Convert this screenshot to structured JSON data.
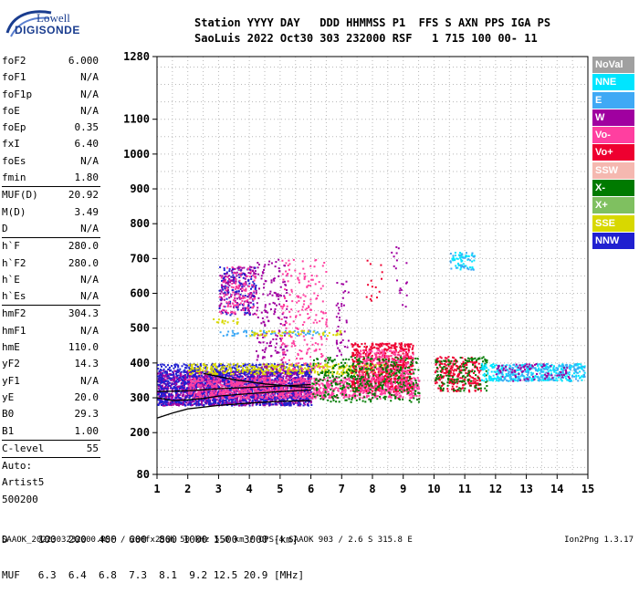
{
  "logo": {
    "line1": "Lowell",
    "line2": "DIGISONDE"
  },
  "header": {
    "line1": "Station YYYY DAY   DDD HHMMSS P1  FFS S AXN PPS IGA PS",
    "line2": "SaoLuis 2022 Oct30 303 232000 RSF   1 715 100 00- 11"
  },
  "params": [
    {
      "label": "foF2",
      "value": "6.000"
    },
    {
      "label": "foF1",
      "value": "N/A"
    },
    {
      "label": "foF1p",
      "value": "N/A"
    },
    {
      "label": "foE",
      "value": "N/A"
    },
    {
      "label": "foEp",
      "value": "0.35"
    },
    {
      "label": "fxI",
      "value": "6.40"
    },
    {
      "label": "foEs",
      "value": "N/A"
    },
    {
      "label": "fmin",
      "value": "1.80"
    },
    {
      "sep": true
    },
    {
      "label": "MUF(D)",
      "value": "20.92"
    },
    {
      "label": "M(D)",
      "value": "3.49"
    },
    {
      "label": "D",
      "value": "N/A"
    },
    {
      "sep": true
    },
    {
      "label": "h`F",
      "value": "280.0"
    },
    {
      "label": "h`F2",
      "value": "280.0"
    },
    {
      "label": "h`E",
      "value": "N/A"
    },
    {
      "label": "h`Es",
      "value": "N/A"
    },
    {
      "sep": true
    },
    {
      "label": "hmF2",
      "value": "304.3"
    },
    {
      "label": "hmF1",
      "value": "N/A"
    },
    {
      "label": "hmE",
      "value": "110.0"
    },
    {
      "label": "yF2",
      "value": "14.3"
    },
    {
      "label": "yF1",
      "value": "N/A"
    },
    {
      "label": "yE",
      "value": "20.0"
    },
    {
      "label": "B0",
      "value": "29.3"
    },
    {
      "label": "B1",
      "value": "1.00"
    },
    {
      "sep": true
    },
    {
      "label": "C-level",
      "value": "55"
    },
    {
      "sep": true
    },
    {
      "plain": "Auto:"
    },
    {
      "plain": "Artist5"
    },
    {
      "plain": "500200"
    }
  ],
  "legend": [
    {
      "name": "NoVal",
      "color": "#a0a0a0"
    },
    {
      "name": "NNE",
      "color": "#00e5ff"
    },
    {
      "name": "E",
      "color": "#3fa9f5"
    },
    {
      "name": "W",
      "color": "#a000a0"
    },
    {
      "name": "Vo-",
      "color": "#ff3fa0"
    },
    {
      "name": "Vo+",
      "color": "#ee0030"
    },
    {
      "name": "SSW",
      "color": "#f5b8b0"
    },
    {
      "name": "X-",
      "color": "#007a00"
    },
    {
      "name": "X+",
      "color": "#7fc060"
    },
    {
      "name": "SSE",
      "color": "#d8d800"
    },
    {
      "name": "NNW",
      "color": "#2020d0"
    }
  ],
  "dmuf": {
    "d_row": "D     100  200  400  600  800 1000 1500 3000 [km]",
    "muf_row": "MUF   6.3  6.4  6.8  7.3  8.1  9.2 12.5 20.9 [MHz]"
  },
  "footer": {
    "left": "SAAOK_2022303232000.RSF / 280fx256h 50 kHz 5.0 km / DPS-4 SAAOK 903 / 2.6 S 315.8 E",
    "right": "Ion2Png 1.3.17"
  },
  "chart_data": {
    "type": "scatter",
    "xlim": [
      1,
      15
    ],
    "ylim": [
      80,
      1280
    ],
    "x_ticks": [
      1,
      2,
      3,
      4,
      5,
      6,
      7,
      8,
      9,
      10,
      11,
      12,
      13,
      14,
      15
    ],
    "y_ticks": [
      80,
      200,
      300,
      400,
      500,
      600,
      700,
      800,
      900,
      1000,
      1100,
      1280
    ],
    "grid": true,
    "clusters": [
      {
        "series": "W",
        "x": [
          1.0,
          6.0
        ],
        "y": [
          280,
          380
        ],
        "density": 1.6
      },
      {
        "series": "NNW",
        "x": [
          1.0,
          6.0
        ],
        "y": [
          280,
          400
        ],
        "density": 1.0
      },
      {
        "series": "Vo-",
        "x": [
          2.0,
          9.5
        ],
        "y": [
          300,
          360
        ],
        "density": 1.2
      },
      {
        "series": "SSE",
        "x": [
          2.0,
          8.5
        ],
        "y": [
          370,
          400
        ],
        "density": 0.9
      },
      {
        "series": "Vo+",
        "x": [
          7.3,
          9.3
        ],
        "y": [
          320,
          460
        ],
        "density": 1.0
      },
      {
        "series": "Vo-",
        "x": [
          7.5,
          9.3
        ],
        "y": [
          320,
          440
        ],
        "density": 0.7
      },
      {
        "series": "X-",
        "x": [
          6.0,
          9.5
        ],
        "y": [
          290,
          420
        ],
        "density": 0.4
      },
      {
        "series": "Vo+",
        "x": [
          10.0,
          11.5
        ],
        "y": [
          320,
          420
        ],
        "density": 0.8
      },
      {
        "series": "X-",
        "x": [
          10.0,
          11.7
        ],
        "y": [
          320,
          420
        ],
        "density": 0.4
      },
      {
        "series": "NNE",
        "x": [
          11.5,
          14.9
        ],
        "y": [
          350,
          400
        ],
        "density": 0.9
      },
      {
        "series": "E",
        "x": [
          12.0,
          14.9
        ],
        "y": [
          350,
          400
        ],
        "density": 0.5
      },
      {
        "series": "W",
        "x": [
          12.0,
          14.5
        ],
        "y": [
          350,
          400
        ],
        "density": 0.3
      },
      {
        "series": "W",
        "x": [
          3.0,
          4.2
        ],
        "y": [
          540,
          680
        ],
        "density": 0.5
      },
      {
        "series": "NNW",
        "x": [
          3.0,
          4.2
        ],
        "y": [
          540,
          680
        ],
        "density": 0.3
      },
      {
        "series": "Vo-",
        "x": [
          3.0,
          4.2
        ],
        "y": [
          540,
          680
        ],
        "density": 0.3
      },
      {
        "series": "W",
        "x": [
          4.2,
          5.2
        ],
        "y": [
          380,
          700
        ],
        "density": 0.25
      },
      {
        "series": "Vo-",
        "x": [
          5.0,
          6.5
        ],
        "y": [
          380,
          700
        ],
        "density": 0.2
      },
      {
        "series": "SSE",
        "x": [
          2.8,
          3.6
        ],
        "y": [
          515,
          530
        ],
        "density": 0.6
      },
      {
        "series": "E",
        "x": [
          3.0,
          6.5
        ],
        "y": [
          480,
          495
        ],
        "density": 0.5
      },
      {
        "series": "SSE",
        "x": [
          4.0,
          7.0
        ],
        "y": [
          480,
          495
        ],
        "density": 0.5
      },
      {
        "series": "W",
        "x": [
          6.8,
          7.2
        ],
        "y": [
          400,
          640
        ],
        "density": 0.2
      },
      {
        "series": "Vo+",
        "x": [
          7.7,
          8.3
        ],
        "y": [
          580,
          700
        ],
        "density": 0.1
      },
      {
        "series": "W",
        "x": [
          8.6,
          9.1
        ],
        "y": [
          560,
          740
        ],
        "density": 0.1
      },
      {
        "series": "NNE",
        "x": [
          10.5,
          11.3
        ],
        "y": [
          670,
          720
        ],
        "density": 0.6
      },
      {
        "series": "E",
        "x": [
          10.5,
          11.3
        ],
        "y": [
          670,
          720
        ],
        "density": 0.3
      }
    ],
    "profile_curves": [
      {
        "x": [
          1.0,
          1.5,
          2.0,
          3.0,
          4.0,
          5.0,
          6.0
        ],
        "y": [
          242,
          256,
          268,
          278,
          285,
          290,
          292
        ]
      },
      {
        "x": [
          1.0,
          1.5,
          2.0,
          2.5,
          3.0,
          4.0,
          5.0,
          6.0
        ],
        "y": [
          300,
          292,
          294,
          298,
          305,
          312,
          318,
          322
        ]
      },
      {
        "x": [
          1.0,
          2.0,
          3.0,
          4.0,
          5.0,
          6.0
        ],
        "y": [
          318,
          320,
          326,
          330,
          334,
          338
        ]
      },
      {
        "x": [
          2.5,
          3.5,
          4.5,
          5.5,
          6.0
        ],
        "y": [
          370,
          352,
          340,
          332,
          330
        ]
      }
    ]
  }
}
